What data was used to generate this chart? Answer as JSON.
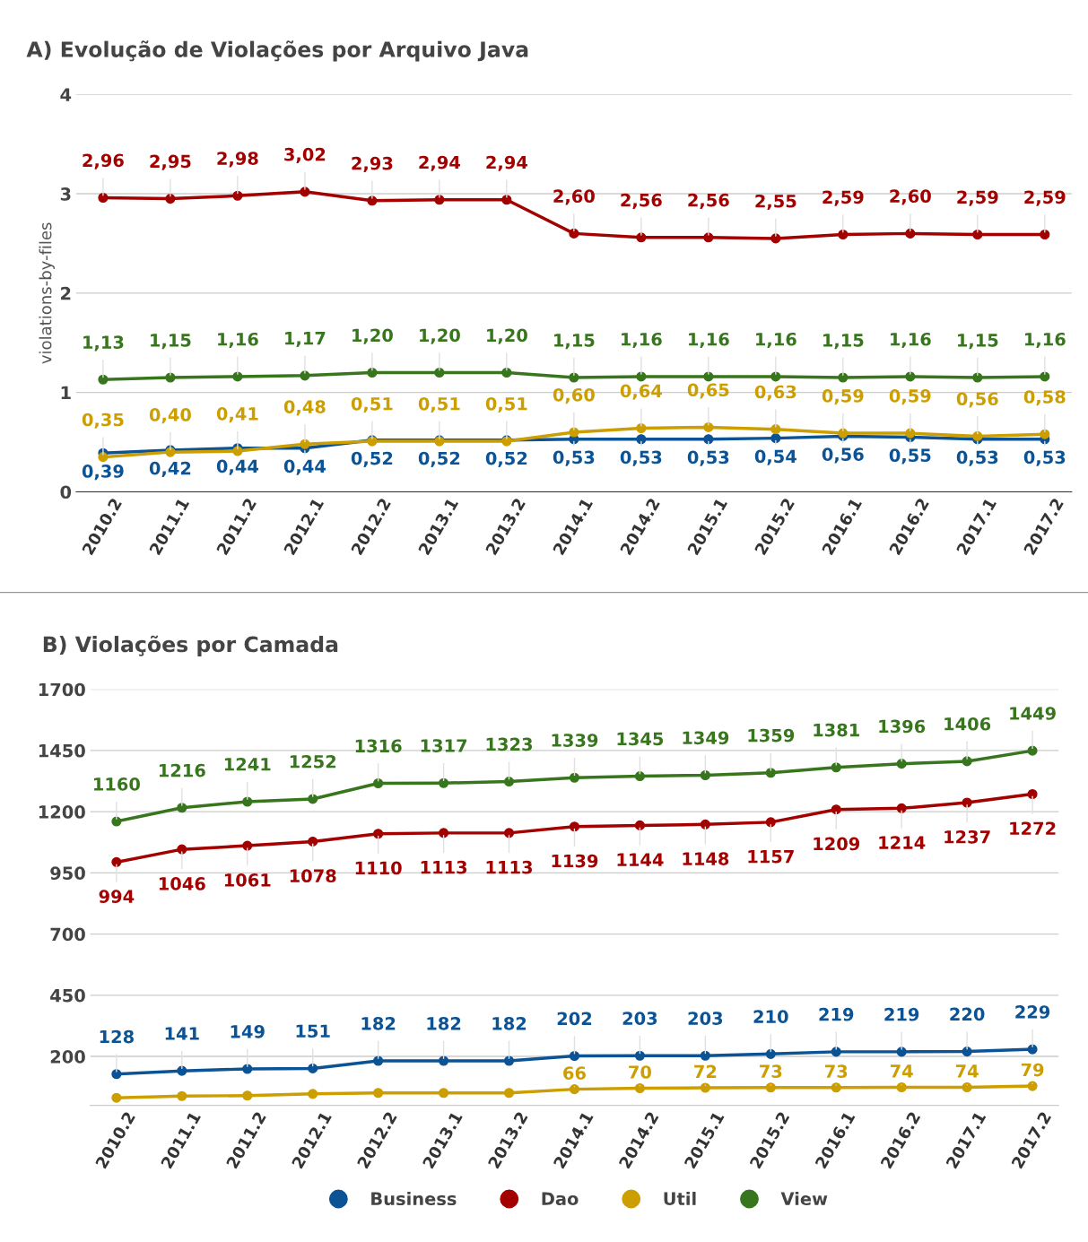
{
  "chart_data": [
    {
      "type": "line",
      "title": "A) Evolução de Violações por Arquivo Java",
      "ylabel": "violations-by-files",
      "categories": [
        "2010.2",
        "2011.1",
        "2011.2",
        "2012.1",
        "2012.2",
        "2013.1",
        "2013.2",
        "2014.1",
        "2014.2",
        "2015.1",
        "2015.2",
        "2016.1",
        "2016.2",
        "2017.1",
        "2017.2"
      ],
      "ylim": [
        0,
        4
      ],
      "yticks": [
        0,
        1,
        2,
        3,
        4
      ],
      "grid": "y",
      "marker": "circle",
      "line_style": "solid",
      "series": [
        {
          "color": "#0b5394",
          "values": [
            0.39,
            0.42,
            0.44,
            0.44,
            0.52,
            0.52,
            0.52,
            0.53,
            0.53,
            0.53,
            0.54,
            0.56,
            0.55,
            0.53,
            0.53
          ],
          "value_labels": [
            "0,39",
            "0,42",
            "0,44",
            "0,44",
            "0,52",
            "0,52",
            "0,52",
            "0,53",
            "0,53",
            "0,53",
            "0,54",
            "0,56",
            "0,55",
            "0,53",
            "0,53"
          ]
        },
        {
          "color": "#a30000",
          "values": [
            2.96,
            2.95,
            2.98,
            3.02,
            2.93,
            2.94,
            2.94,
            2.6,
            2.56,
            2.56,
            2.55,
            2.59,
            2.6,
            2.59,
            2.59
          ],
          "value_labels": [
            "2,96",
            "2,95",
            "2,98",
            "3,02",
            "2,93",
            "2,94",
            "2,94",
            "2,60",
            "2,56",
            "2,56",
            "2,55",
            "2,59",
            "2,60",
            "2,59",
            "2,59"
          ]
        },
        {
          "color": "#cc9e00",
          "values": [
            0.35,
            0.4,
            0.41,
            0.48,
            0.51,
            0.51,
            0.51,
            0.6,
            0.64,
            0.65,
            0.63,
            0.59,
            0.59,
            0.56,
            0.58
          ],
          "value_labels": [
            "0,35",
            "0,40",
            "0,41",
            "0,48",
            "0,51",
            "0,51",
            "0,51",
            "0,60",
            "0,64",
            "0,65",
            "0,63",
            "0,59",
            "0,59",
            "0,56",
            "0,58"
          ]
        },
        {
          "color": "#38761d",
          "values": [
            1.13,
            1.15,
            1.16,
            1.17,
            1.2,
            1.2,
            1.2,
            1.15,
            1.16,
            1.16,
            1.16,
            1.15,
            1.16,
            1.15,
            1.16
          ],
          "value_labels": [
            "1,13",
            "1,15",
            "1,16",
            "1,17",
            "1,20",
            "1,20",
            "1,20",
            "1,15",
            "1,16",
            "1,16",
            "1,16",
            "1,15",
            "1,16",
            "1,15",
            "1,16"
          ]
        }
      ]
    },
    {
      "type": "line",
      "title": "B) Violações por Camada",
      "categories": [
        "2010.2",
        "2011.1",
        "2011.2",
        "2012.1",
        "2012.2",
        "2013.1",
        "2013.2",
        "2014.1",
        "2014.2",
        "2015.1",
        "2015.2",
        "2016.1",
        "2016.2",
        "2017.1",
        "2017.2"
      ],
      "ylim": [
        0,
        1700
      ],
      "yticks": [
        200,
        450,
        700,
        950,
        1200,
        1450,
        1700
      ],
      "grid": "y",
      "marker": "circle",
      "line_style": "solid",
      "legend": "bottom",
      "series": [
        {
          "name": "Business",
          "color": "#0b5394",
          "values": [
            128,
            141,
            149,
            151,
            182,
            182,
            182,
            202,
            203,
            203,
            210,
            219,
            219,
            220,
            229
          ],
          "value_labels": [
            "128",
            "141",
            "149",
            "151",
            "182",
            "182",
            "182",
            "202",
            "203",
            "203",
            "210",
            "219",
            "219",
            "220",
            "229"
          ]
        },
        {
          "name": "Dao",
          "color": "#a30000",
          "values": [
            994,
            1046,
            1061,
            1078,
            1110,
            1113,
            1113,
            1139,
            1144,
            1148,
            1157,
            1209,
            1214,
            1237,
            1272
          ],
          "value_labels": [
            "994",
            "1046",
            "1061",
            "1078",
            "1110",
            "1113",
            "1113",
            "1139",
            "1144",
            "1148",
            "1157",
            "1209",
            "1214",
            "1237",
            "1272"
          ]
        },
        {
          "name": "Util",
          "color": "#cc9e00",
          "values": [
            31,
            38,
            40,
            47,
            51,
            51,
            51,
            66,
            70,
            72,
            73,
            73,
            74,
            74,
            79
          ],
          "value_labels": [
            null,
            null,
            null,
            null,
            null,
            null,
            null,
            "66",
            "70",
            "72",
            "73",
            "73",
            "74",
            "74",
            "79"
          ]
        },
        {
          "name": "View",
          "color": "#38761d",
          "values": [
            1160,
            1216,
            1241,
            1252,
            1316,
            1317,
            1323,
            1339,
            1345,
            1349,
            1359,
            1381,
            1396,
            1406,
            1449
          ],
          "value_labels": [
            "1160",
            "1216",
            "1241",
            "1252",
            "1316",
            "1317",
            "1323",
            "1339",
            "1345",
            "1349",
            "1359",
            "1381",
            "1396",
            "1406",
            "1449"
          ]
        }
      ]
    }
  ]
}
